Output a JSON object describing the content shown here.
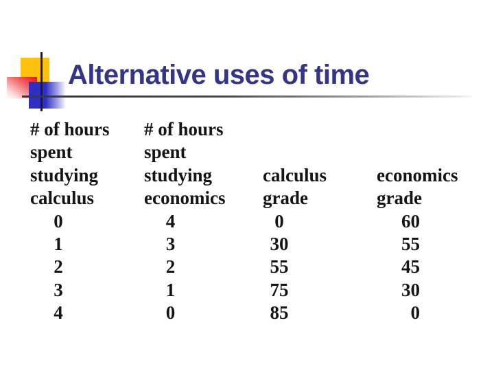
{
  "slide": {
    "title": "Alternative uses of time"
  },
  "table": {
    "columns": [
      {
        "header_lines": [
          "# of hours",
          "spent",
          "studying",
          "calculus"
        ],
        "values": [
          "0",
          "1",
          "2",
          "3",
          "4"
        ]
      },
      {
        "header_lines": [
          "# of hours",
          "spent",
          "studying",
          "economics"
        ],
        "values": [
          "4",
          "3",
          "2",
          "1",
          "0"
        ]
      },
      {
        "header_lines": [
          "calculus",
          "grade"
        ],
        "values": [
          "0",
          "30",
          "55",
          "75",
          "85"
        ]
      },
      {
        "header_lines": [
          "economics",
          "grade"
        ],
        "values": [
          "60",
          "55",
          "45",
          "30",
          "0"
        ]
      }
    ]
  },
  "colors": {
    "title_text": "#34348a",
    "table_text": "#151515",
    "decor_yellow": "#fec20c",
    "decor_red": "#ec1b1b",
    "decor_blue": "#2f2fc3",
    "rule_dark": "#383838"
  }
}
